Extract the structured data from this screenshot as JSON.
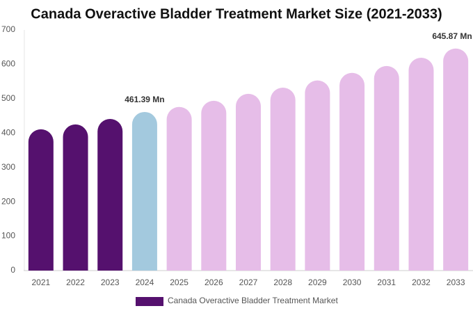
{
  "chart_data": {
    "type": "bar",
    "title": "Canada Overactive Bladder Treatment Market Size (2021-2033)",
    "categories": [
      "2021",
      "2022",
      "2023",
      "2024",
      "2025",
      "2026",
      "2027",
      "2028",
      "2029",
      "2030",
      "2031",
      "2032",
      "2033"
    ],
    "series": [
      {
        "name": "Canada Overactive Bladder Treatment Market",
        "color": "#55116e",
        "colors": [
          "#55116e",
          "#55116e",
          "#55116e",
          "#a3c9de",
          "#e6bde8",
          "#e6bde8",
          "#e6bde8",
          "#e6bde8",
          "#e6bde8",
          "#e6bde8",
          "#e6bde8",
          "#e6bde8",
          "#e6bde8"
        ],
        "values": [
          411,
          425,
          441,
          461.39,
          476,
          494,
          514,
          532,
          553,
          575,
          595,
          619,
          645.87
        ],
        "value_labels": [
          null,
          null,
          null,
          "461.39 Mn",
          null,
          null,
          null,
          null,
          null,
          null,
          null,
          null,
          "645.87 Mn"
        ]
      }
    ],
    "ylim": [
      0,
      700
    ],
    "yticks": [
      0,
      100,
      200,
      300,
      400,
      500,
      600,
      700
    ],
    "grid": false,
    "legend": "bottom"
  }
}
